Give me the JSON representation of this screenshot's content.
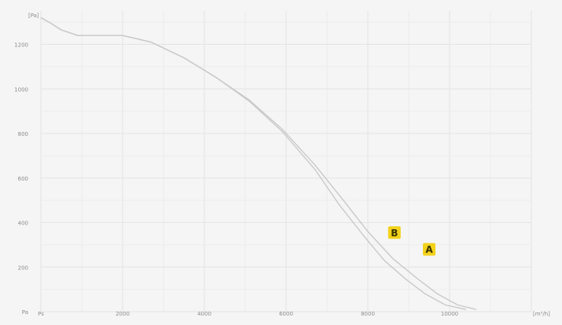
{
  "chart_data": {
    "type": "line",
    "title": "",
    "xlabel": "",
    "ylabel": "",
    "x_unit": "[m³/h]",
    "y_unit": "[Pa]",
    "xlim": [
      0,
      12000
    ],
    "ylim": [
      0,
      1350
    ],
    "x_ticks": [
      0,
      2000,
      4000,
      6000,
      8000,
      10000
    ],
    "x_tick_labels": [
      "Ps",
      "2000",
      "4000",
      "6000",
      "8000",
      "10000"
    ],
    "y_ticks": [
      0,
      200,
      400,
      600,
      800,
      1000,
      1200
    ],
    "y_tick_labels": [
      "Pa",
      "200",
      "400",
      "600",
      "800",
      "1000",
      "1200"
    ],
    "grid": true,
    "legend": "none",
    "line_color": "#c9c9c9",
    "marker_color": "#f2d21b",
    "series": [
      {
        "label": "A",
        "x": [
          0,
          200,
          500,
          900,
          1400,
          2000,
          2700,
          3500,
          4300,
          5100,
          5900,
          6700,
          7400,
          8000,
          8600,
          9200,
          9700,
          10200,
          10650
        ],
        "y": [
          1320,
          1300,
          1265,
          1240,
          1240,
          1240,
          1210,
          1140,
          1050,
          950,
          820,
          660,
          500,
          360,
          240,
          150,
          80,
          30,
          10
        ]
      },
      {
        "label": "B",
        "x": [
          0,
          200,
          500,
          900,
          1400,
          2000,
          2700,
          3500,
          4300,
          5100,
          5900,
          6700,
          7300,
          7900,
          8400,
          8900,
          9400,
          9900,
          10400
        ],
        "y": [
          1320,
          1300,
          1265,
          1240,
          1240,
          1240,
          1210,
          1140,
          1050,
          945,
          810,
          640,
          480,
          340,
          230,
          150,
          80,
          30,
          10
        ]
      }
    ],
    "markers": [
      {
        "label": "A",
        "x": 9500,
        "y": 280
      },
      {
        "label": "B",
        "x": 8650,
        "y": 355
      }
    ]
  }
}
